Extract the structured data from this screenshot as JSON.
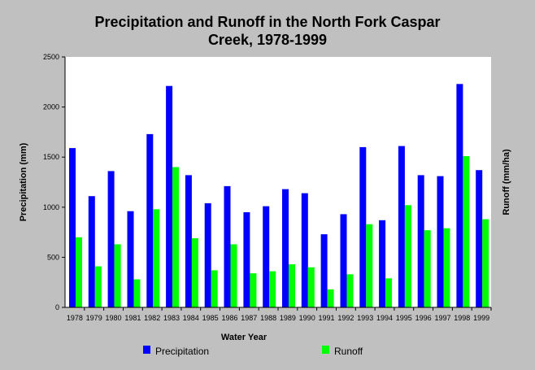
{
  "chart_data": {
    "type": "bar",
    "title_lines": [
      "Precipitation and Runoff in the North Fork Caspar",
      "Creek, 1978-1999"
    ],
    "xlabel": "Water Year",
    "ylabel": "Precipitation (mm)",
    "ylabel_right": "Runoff (mm/ha)",
    "ylim": [
      0,
      2500
    ],
    "yticks": [
      0,
      500,
      1000,
      1500,
      2000,
      2500
    ],
    "grid": false,
    "legend_position": "bottom",
    "categories": [
      "1978",
      "1979",
      "1980",
      "1981",
      "1982",
      "1983",
      "1984",
      "1985",
      "1986",
      "1987",
      "1988",
      "1989",
      "1990",
      "1991",
      "1992",
      "1993",
      "1994",
      "1995",
      "1996",
      "1997",
      "1998",
      "1999"
    ],
    "series": [
      {
        "name": "Precipitation",
        "color": "#0000ff",
        "values": [
          1590,
          1110,
          1360,
          960,
          1730,
          2210,
          1320,
          1040,
          1210,
          950,
          1010,
          1180,
          1140,
          730,
          930,
          1600,
          870,
          1610,
          1320,
          1310,
          2230,
          1370
        ]
      },
      {
        "name": "Runoff",
        "color": "#00ff00",
        "values": [
          700,
          410,
          630,
          280,
          980,
          1400,
          690,
          370,
          630,
          340,
          360,
          430,
          400,
          180,
          330,
          830,
          290,
          1020,
          770,
          790,
          1510,
          880
        ]
      }
    ]
  }
}
